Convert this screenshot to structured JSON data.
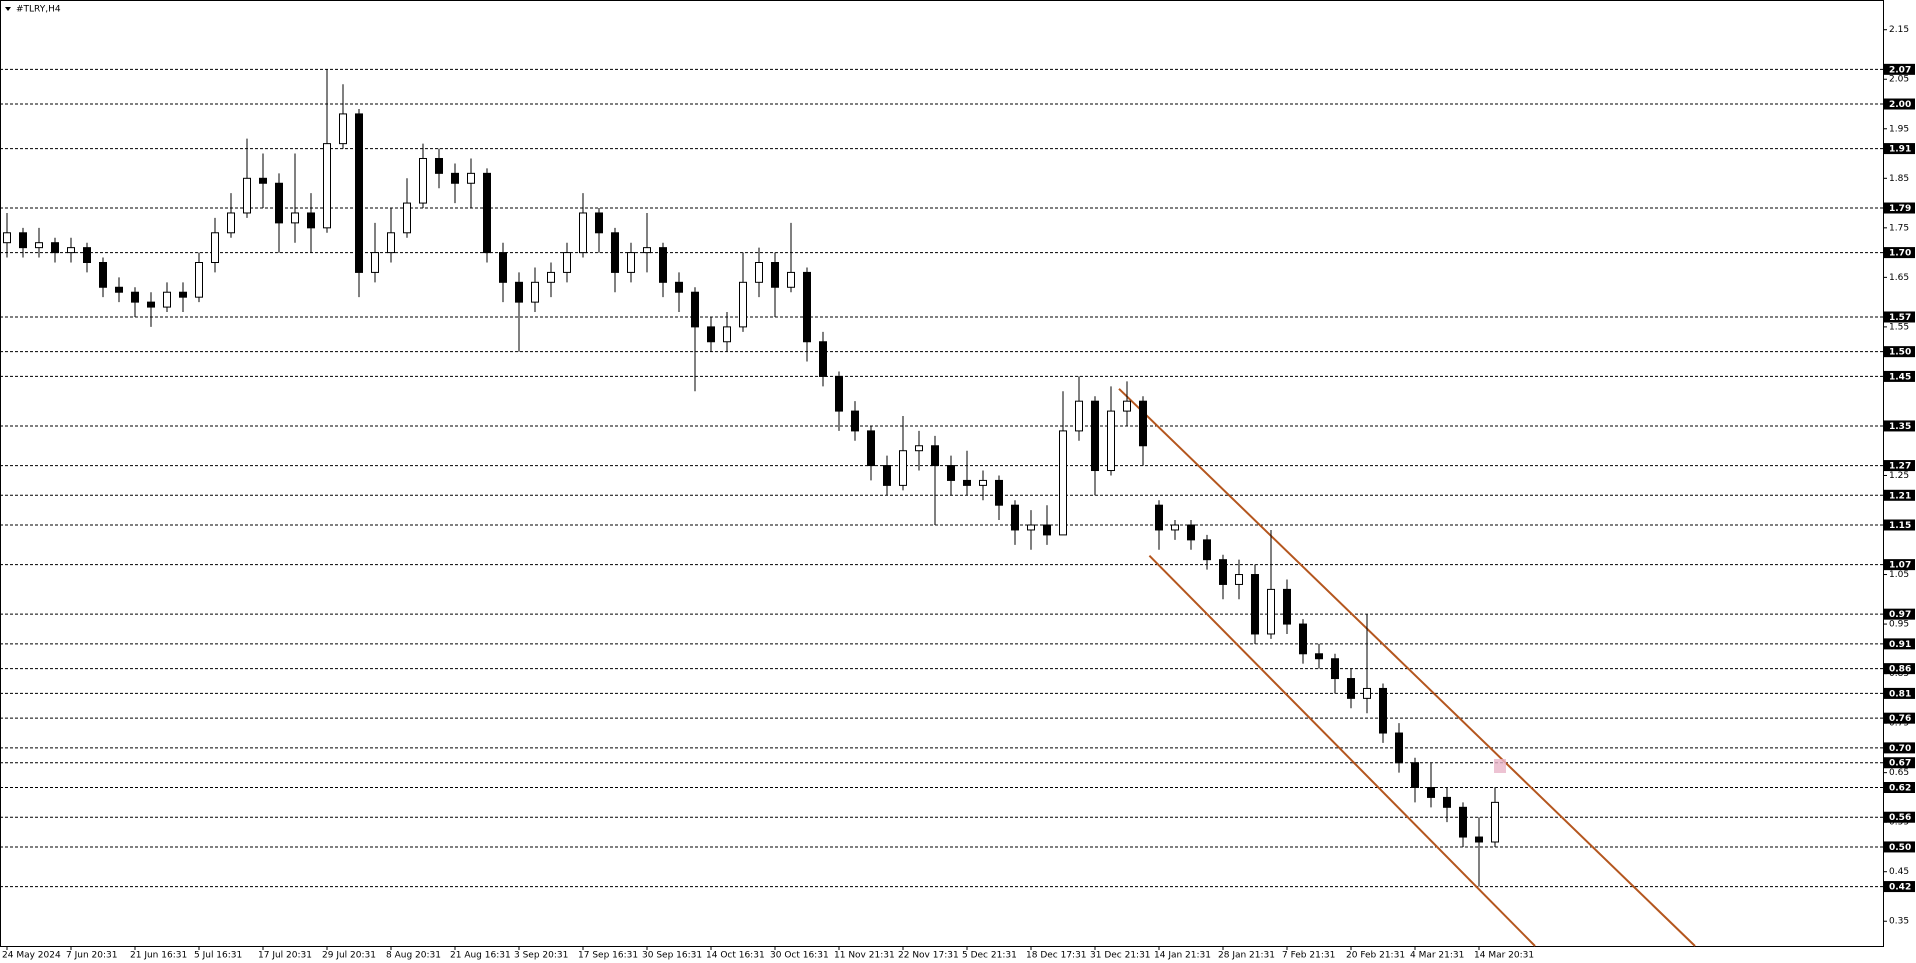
{
  "chart_data": {
    "type": "candlestick",
    "title": "#TLRY,H4",
    "categories": [
      "24 May 2024",
      null,
      null,
      null,
      "7 Jun 20:31",
      null,
      null,
      null,
      "21 Jun 16:31",
      null,
      null,
      null,
      "5 Jul 16:31",
      null,
      null,
      null,
      "17 Jul 20:31",
      null,
      null,
      null,
      "29 Jul 20:31",
      null,
      null,
      null,
      "8 Aug 20:31",
      null,
      null,
      null,
      "21 Aug 16:31",
      null,
      null,
      null,
      "3 Sep 20:31",
      null,
      null,
      null,
      "17 Sep 16:31",
      null,
      null,
      null,
      "30 Sep 16:31",
      null,
      null,
      null,
      "14 Oct 16:31",
      null,
      null,
      null,
      "30 Oct 16:31",
      null,
      null,
      null,
      "11 Nov 21:31",
      null,
      null,
      null,
      "22 Nov 17:31",
      null,
      null,
      null,
      "5 Dec 21:31",
      null,
      null,
      null,
      "18 Dec 17:31",
      null,
      null,
      null,
      "31 Dec 21:31",
      null,
      null,
      null,
      "14 Jan 21:31",
      null,
      null,
      null,
      "28 Jan 21:31",
      null,
      null,
      null,
      "7 Feb 21:31",
      null,
      null,
      null,
      "20 Feb 21:31",
      null,
      null,
      null,
      "4 Mar 21:31",
      null,
      null,
      null,
      "14 Mar 20:31",
      null
    ],
    "open": [
      1.72,
      1.74,
      1.71,
      1.72,
      1.7,
      1.71,
      1.68,
      1.63,
      1.62,
      1.6,
      1.59,
      1.62,
      1.61,
      1.68,
      1.74,
      1.78,
      1.85,
      1.84,
      1.76,
      1.78,
      1.75,
      1.92,
      1.98,
      1.66,
      1.7,
      1.74,
      1.8,
      1.89,
      1.86,
      1.84,
      1.86,
      1.7,
      1.64,
      1.6,
      1.64,
      1.66,
      1.7,
      1.78,
      1.74,
      1.66,
      1.7,
      1.71,
      1.64,
      1.62,
      1.55,
      1.52,
      1.55,
      1.64,
      1.68,
      1.63,
      1.66,
      1.52,
      1.45,
      1.38,
      1.34,
      1.27,
      1.23,
      1.3,
      1.31,
      1.27,
      1.24,
      1.23,
      1.24,
      1.19,
      1.14,
      1.15,
      1.13,
      1.34,
      1.4,
      1.26,
      1.38,
      1.4,
      1.19,
      1.14,
      1.15,
      1.12,
      1.08,
      1.03,
      1.05,
      0.93,
      1.02,
      0.95,
      0.89,
      0.88,
      0.84,
      0.8,
      0.82,
      0.73,
      0.67,
      0.62,
      0.6,
      0.58,
      0.52,
      0.51
    ],
    "high": [
      1.78,
      1.75,
      1.75,
      1.73,
      1.73,
      1.72,
      1.69,
      1.65,
      1.63,
      1.62,
      1.64,
      1.64,
      1.7,
      1.77,
      1.82,
      1.93,
      1.9,
      1.86,
      1.9,
      1.82,
      2.07,
      2.04,
      1.99,
      1.76,
      1.79,
      1.85,
      1.92,
      1.91,
      1.88,
      1.89,
      1.87,
      1.72,
      1.66,
      1.67,
      1.68,
      1.72,
      1.82,
      1.79,
      1.75,
      1.72,
      1.78,
      1.72,
      1.66,
      1.63,
      1.57,
      1.58,
      1.7,
      1.71,
      1.7,
      1.76,
      1.67,
      1.54,
      1.46,
      1.4,
      1.35,
      1.29,
      1.37,
      1.34,
      1.33,
      1.29,
      1.3,
      1.26,
      1.25,
      1.2,
      1.18,
      1.19,
      1.42,
      1.45,
      1.41,
      1.43,
      1.44,
      1.41,
      1.2,
      1.16,
      1.16,
      1.13,
      1.09,
      1.08,
      1.07,
      1.14,
      1.04,
      0.96,
      0.91,
      0.89,
      0.86,
      0.97,
      0.83,
      0.75,
      0.68,
      0.67,
      0.62,
      0.59,
      0.56,
      0.62
    ],
    "low": [
      1.69,
      1.69,
      1.69,
      1.68,
      1.68,
      1.66,
      1.61,
      1.6,
      1.57,
      1.55,
      1.58,
      1.58,
      1.6,
      1.66,
      1.73,
      1.77,
      1.79,
      1.7,
      1.72,
      1.7,
      1.74,
      1.91,
      1.61,
      1.64,
      1.68,
      1.73,
      1.79,
      1.83,
      1.8,
      1.79,
      1.68,
      1.6,
      1.5,
      1.58,
      1.61,
      1.64,
      1.69,
      1.7,
      1.62,
      1.64,
      1.66,
      1.61,
      1.58,
      1.42,
      1.5,
      1.5,
      1.54,
      1.61,
      1.57,
      1.62,
      1.48,
      1.43,
      1.34,
      1.32,
      1.24,
      1.21,
      1.22,
      1.26,
      1.15,
      1.21,
      1.21,
      1.2,
      1.16,
      1.11,
      1.1,
      1.11,
      1.13,
      1.32,
      1.21,
      1.25,
      1.35,
      1.27,
      1.1,
      1.12,
      1.1,
      1.06,
      1.0,
      1.0,
      0.91,
      0.92,
      0.93,
      0.87,
      0.86,
      0.81,
      0.78,
      0.77,
      0.71,
      0.65,
      0.59,
      0.58,
      0.55,
      0.5,
      0.42,
      0.5
    ],
    "close": [
      1.74,
      1.71,
      1.72,
      1.7,
      1.71,
      1.68,
      1.63,
      1.62,
      1.6,
      1.59,
      1.62,
      1.61,
      1.68,
      1.74,
      1.78,
      1.85,
      1.84,
      1.76,
      1.78,
      1.75,
      1.92,
      1.98,
      1.66,
      1.7,
      1.74,
      1.8,
      1.89,
      1.86,
      1.84,
      1.86,
      1.7,
      1.64,
      1.6,
      1.64,
      1.66,
      1.7,
      1.78,
      1.74,
      1.66,
      1.7,
      1.71,
      1.64,
      1.62,
      1.55,
      1.52,
      1.55,
      1.64,
      1.68,
      1.63,
      1.66,
      1.52,
      1.45,
      1.38,
      1.34,
      1.27,
      1.23,
      1.3,
      1.31,
      1.27,
      1.24,
      1.23,
      1.24,
      1.19,
      1.14,
      1.15,
      1.13,
      1.34,
      1.4,
      1.26,
      1.38,
      1.4,
      1.31,
      1.14,
      1.15,
      1.12,
      1.08,
      1.03,
      1.05,
      0.93,
      1.02,
      0.95,
      0.89,
      0.88,
      0.84,
      0.8,
      0.82,
      0.73,
      0.67,
      0.62,
      0.6,
      0.58,
      0.52,
      0.51,
      0.59
    ],
    "ylim": [
      0.3,
      2.21
    ],
    "yticks": [
      0.35,
      0.45,
      0.55,
      0.65,
      0.75,
      0.85,
      0.95,
      1.05,
      1.15,
      1.25,
      1.35,
      1.45,
      1.55,
      1.65,
      1.75,
      1.85,
      1.95,
      2.05,
      2.15
    ],
    "levels": [
      2.07,
      {
        "value": 2.0,
        "label": "2.00"
      },
      1.91,
      1.79,
      {
        "value": 1.7,
        "label": "1.70"
      },
      1.57,
      {
        "value": 1.5,
        "label": "1.50"
      },
      1.45,
      1.35,
      1.27,
      1.21,
      1.15,
      1.07,
      0.97,
      0.91,
      0.86,
      0.81,
      0.76,
      {
        "value": 0.7,
        "label": "0.70"
      },
      0.67,
      0.62,
      0.56,
      {
        "value": 0.5,
        "label": "0.50"
      },
      0.42
    ],
    "channel": {
      "color": "#b4561e",
      "lines": [
        {
          "x": [
            69.5,
            105.5
          ],
          "y": [
            1.425,
            0.3
          ]
        },
        {
          "x": [
            71.4,
            95.5
          ],
          "y": [
            1.088,
            0.3
          ]
        }
      ]
    },
    "grid": false
  }
}
